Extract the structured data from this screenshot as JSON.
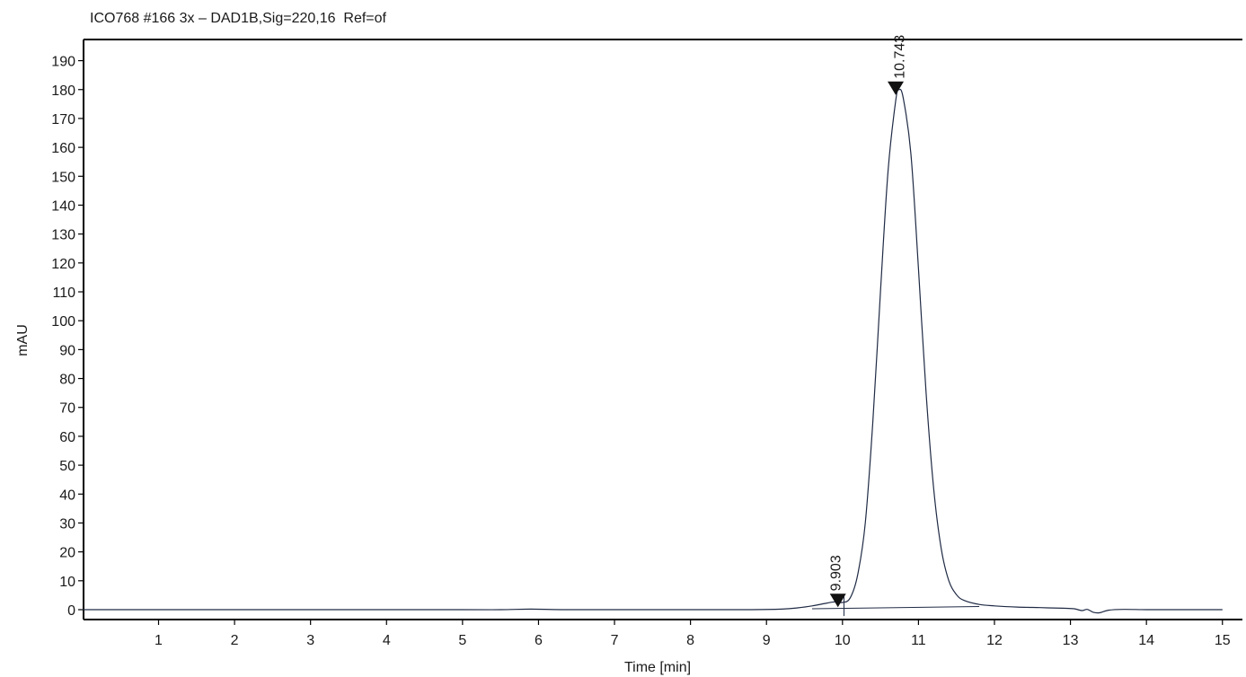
{
  "chart_data": {
    "type": "line",
    "title": "ICO768 #166 3x – DAD1B,Sig=220,16  Ref=of",
    "xlabel": "Time [min]",
    "ylabel": "mAU",
    "xlim": [
      0,
      15.15
    ],
    "ylim": [
      -3,
      196
    ],
    "xticks": [
      1,
      2,
      3,
      4,
      5,
      6,
      7,
      8,
      9,
      10,
      11,
      12,
      13,
      14,
      15
    ],
    "yticks": [
      0,
      10,
      20,
      30,
      40,
      50,
      60,
      70,
      80,
      90,
      100,
      110,
      120,
      130,
      140,
      150,
      160,
      170,
      180,
      190
    ],
    "grid": false,
    "color": "#1f2a44",
    "series": [
      {
        "x": [
          0,
          1,
          2,
          3,
          4,
          5,
          5.5,
          5.9,
          6.3,
          7,
          8,
          8.8,
          9.2,
          9.4,
          9.6,
          9.8,
          9.903,
          10.0,
          10.1,
          10.2,
          10.3,
          10.4,
          10.5,
          10.6,
          10.7,
          10.743,
          10.8,
          10.9,
          11.0,
          11.1,
          11.2,
          11.3,
          11.4,
          11.5,
          11.6,
          11.8,
          12.0,
          12.3,
          12.6,
          12.9,
          13.05,
          13.15,
          13.22,
          13.3,
          13.38,
          13.5,
          13.7,
          14,
          14.5,
          15.0
        ],
        "y": [
          0,
          0,
          0,
          0,
          0,
          0,
          0,
          0.2,
          0,
          0,
          0,
          0,
          0.2,
          0.6,
          1.3,
          2.3,
          2.7,
          2.5,
          4,
          12,
          30,
          65,
          110,
          152,
          176,
          180,
          177,
          158,
          118,
          75,
          42,
          21,
          10,
          5.2,
          3.2,
          1.8,
          1.3,
          0.9,
          0.7,
          0.5,
          0.3,
          -0.3,
          0.1,
          -0.9,
          -1.1,
          -0.2,
          0.1,
          0,
          0,
          0
        ]
      }
    ],
    "baseline": {
      "x": [
        9.6,
        11.8
      ],
      "y": [
        0.3,
        1.1
      ]
    },
    "peaks": [
      {
        "time": 9.903,
        "height": 2.7,
        "label": "9.903"
      },
      {
        "time": 10.743,
        "height": 180,
        "label": "10.743"
      }
    ],
    "peak_marker_times": [
      9.94,
      10.7
    ]
  }
}
